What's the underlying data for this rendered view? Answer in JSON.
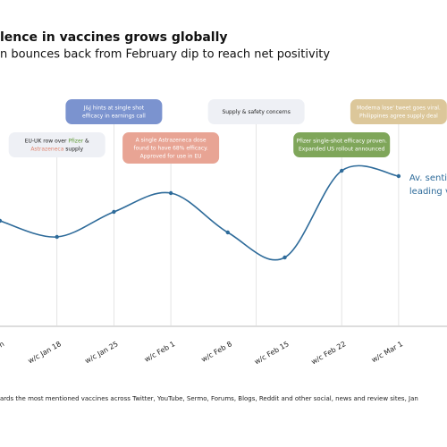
{
  "chart_data": {
    "type": "line",
    "title": "lence in vaccines grows globally",
    "subtitle": "n bounces back from February dip to reach net positivity",
    "categories": [
      "n",
      "w/c Jan 18",
      "w/c Jan 25",
      "w/c Feb 1",
      "w/c Feb 8",
      "w/c Feb 15",
      "w/c Feb 22",
      "w/c Mar 1"
    ],
    "series": [
      {
        "name": "Av. sentiment",
        "color": "#2e6b9a",
        "values": [
          103,
          85,
          113,
          134,
          90,
          62,
          159,
          153
        ]
      }
    ],
    "ylim": [
      0,
      350
    ],
    "end_label": [
      "Av. sentim",
      "leading va"
    ],
    "footnote": "ards the most mentioned vaccines across Twitter, YouTube, Sermo, Forums, Blogs, Reddit and other social, news and review sites, Jan",
    "annotations": [
      {
        "category": 1,
        "color": "#eef0f5",
        "text_color": "#222",
        "lines": [
          [
            {
              "text": "EU-UK row over "
            },
            {
              "text": "Pfizer",
              "color": "#5e9a35"
            },
            {
              "text": " &"
            }
          ],
          [
            {
              "text": "Astrazeneca",
              "color": "#e0846f"
            },
            {
              "text": " supply"
            }
          ]
        ]
      },
      {
        "category": 2,
        "color": "#7b93cf",
        "text_color": "#fff",
        "lines": [
          [
            {
              "text": "J&J hints at single shot"
            }
          ],
          [
            {
              "text": "efficacy in earnings call"
            }
          ]
        ]
      },
      {
        "category": 3,
        "color": "#e8a494",
        "text_color": "#fff",
        "lines": [
          [
            {
              "text": "A single Astrazeneca dose"
            }
          ],
          [
            {
              "text": "found to have 68% efficacy."
            }
          ],
          [
            {
              "text": "Approved for use in EU"
            }
          ]
        ]
      },
      {
        "category": 4.5,
        "color": "#eef0f5",
        "text_color": "#222",
        "lines": [
          [
            {
              "text": "Supply & safety concerns"
            }
          ]
        ]
      },
      {
        "category": 6,
        "color": "#7fa65a",
        "text_color": "#fff",
        "lines": [
          [
            {
              "text": "Pfizer single-shot efficacy proven."
            }
          ],
          [
            {
              "text": "Expanded US rollout announced"
            }
          ]
        ]
      },
      {
        "category": 7,
        "color": "#dcc79a",
        "text_color": "#fff",
        "lines": [
          [
            {
              "text": "Moderna lose' tweet goes viral."
            }
          ],
          [
            {
              "text": "Philippines agree supply deal"
            }
          ]
        ]
      }
    ]
  }
}
